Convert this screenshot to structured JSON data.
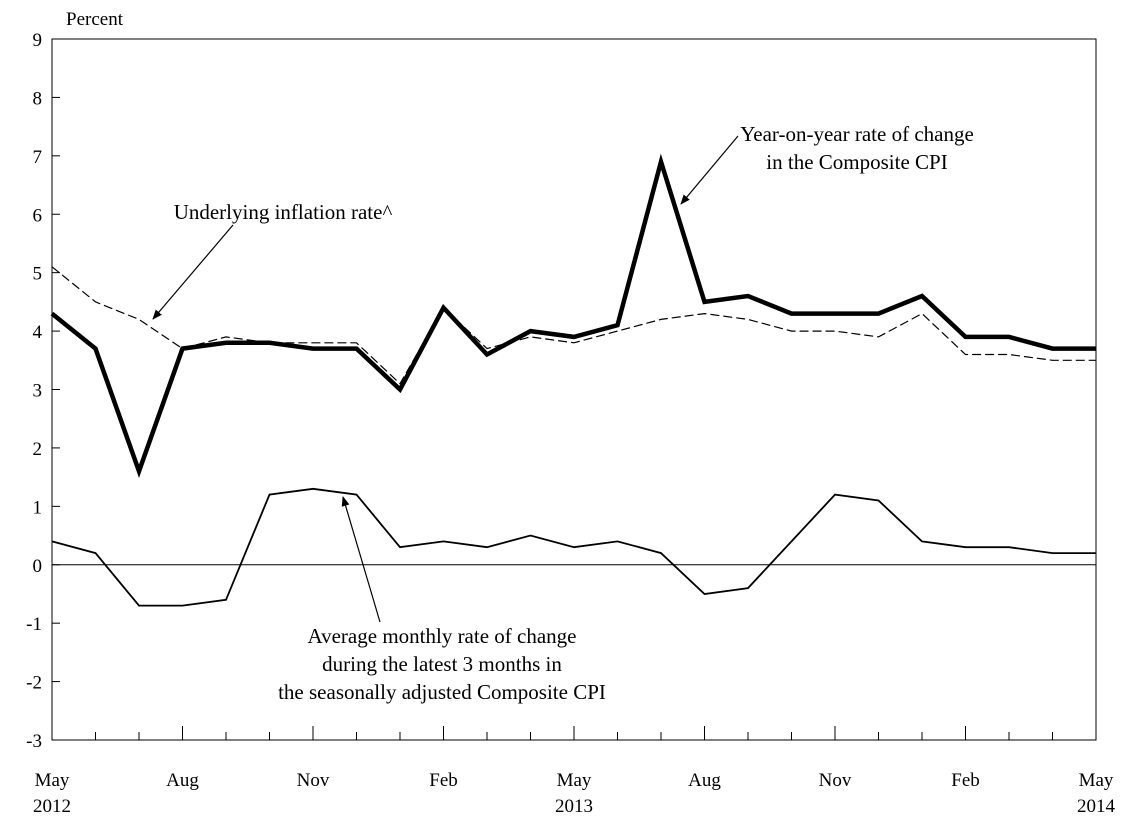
{
  "chart_data": {
    "type": "line",
    "ylabel": "Percent",
    "ylim": [
      -3,
      9
    ],
    "yticks": [
      "-3",
      "-2",
      "-1",
      "0",
      "1",
      "2",
      "3",
      "4",
      "5",
      "6",
      "7",
      "8",
      "9"
    ],
    "x_period": [
      "May 2012",
      "Jun 2012",
      "Jul 2012",
      "Aug 2012",
      "Sep 2012",
      "Oct 2012",
      "Nov 2012",
      "Dec 2012",
      "Jan 2013",
      "Feb 2013",
      "Mar 2013",
      "Apr 2013",
      "May 2013",
      "Jun 2013",
      "Jul 2013",
      "Aug 2013",
      "Sep 2013",
      "Oct 2013",
      "Nov 2013",
      "Dec 2013",
      "Jan 2014",
      "Feb 2014",
      "Mar 2014",
      "Apr 2014",
      "May 2014"
    ],
    "xtick_labels": [
      {
        "month": "May",
        "year": "2012",
        "index": 0
      },
      {
        "month": "Aug",
        "year": "",
        "index": 3
      },
      {
        "month": "Nov",
        "year": "",
        "index": 6
      },
      {
        "month": "Feb",
        "year": "",
        "index": 9
      },
      {
        "month": "May",
        "year": "2013",
        "index": 12
      },
      {
        "month": "Aug",
        "year": "",
        "index": 15
      },
      {
        "month": "Nov",
        "year": "",
        "index": 18
      },
      {
        "month": "Feb",
        "year": "",
        "index": 21
      },
      {
        "month": "May",
        "year": "2014",
        "index": 24
      }
    ],
    "series": [
      {
        "key": "yoy",
        "style": "thick-solid",
        "color": "#000000",
        "values": [
          4.3,
          3.7,
          1.6,
          3.7,
          3.8,
          3.8,
          3.7,
          3.7,
          3.0,
          4.4,
          3.6,
          4.0,
          3.9,
          4.1,
          6.9,
          4.5,
          4.6,
          4.3,
          4.3,
          4.3,
          4.6,
          3.9,
          3.9,
          3.7,
          3.7
        ]
      },
      {
        "key": "underlying",
        "style": "dashed",
        "color": "#000000",
        "values": [
          5.1,
          4.5,
          4.2,
          3.7,
          3.9,
          3.8,
          3.8,
          3.8,
          3.1,
          4.4,
          3.7,
          3.9,
          3.8,
          4.0,
          4.2,
          4.3,
          4.2,
          4.0,
          4.0,
          3.9,
          4.3,
          3.6,
          3.6,
          3.5,
          3.5
        ]
      },
      {
        "key": "monthly3",
        "style": "thin-solid",
        "color": "#000000",
        "values": [
          0.4,
          0.2,
          -0.7,
          -0.7,
          -0.6,
          1.2,
          1.3,
          1.2,
          0.3,
          0.4,
          0.3,
          0.5,
          0.3,
          0.4,
          0.2,
          -0.5,
          -0.4,
          0.4,
          1.2,
          1.1,
          0.4,
          0.3,
          0.3,
          0.2,
          0.2
        ]
      }
    ],
    "annotations": [
      {
        "key": "yoy",
        "lines": [
          "Year-on-year rate of change",
          "in the Composite CPI"
        ]
      },
      {
        "key": "underlying",
        "lines": [
          "Underlying inflation rate^"
        ]
      },
      {
        "key": "monthly3",
        "lines": [
          "Average monthly rate of change",
          "during the latest 3 months in",
          "the seasonally adjusted Composite CPI"
        ]
      }
    ],
    "zero_line": true,
    "grid": false,
    "legend": "none"
  }
}
